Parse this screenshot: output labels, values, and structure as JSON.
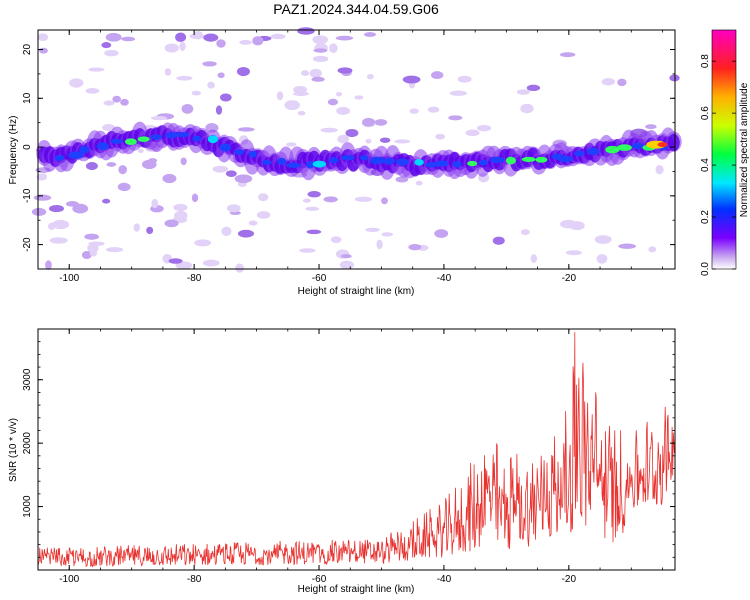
{
  "title": "PAZ1.2024.344.04.59.G06",
  "chart_data": [
    {
      "type": "heatmap",
      "xlabel": "Height of straight line (km)",
      "ylabel": "Frequency (Hz)",
      "xlim": [
        -105,
        -3
      ],
      "ylim": [
        -25,
        24
      ],
      "x_ticks": [
        -100,
        -80,
        -60,
        -40,
        -20
      ],
      "y_ticks": [
        -20,
        -10,
        0,
        10,
        20
      ],
      "x_tick_labels": [
        "-100",
        "-80",
        "-60",
        "-40",
        "-20"
      ],
      "y_tick_labels": [
        "-20",
        "-10",
        "0",
        "10",
        "20"
      ],
      "colorbar": {
        "label": "Normalized spectral amplitude",
        "range": [
          0,
          0.92
        ],
        "ticks": [
          0,
          0.2,
          0.4,
          0.6,
          0.8
        ],
        "tick_labels": [
          "0.0",
          "0.2",
          "0.4",
          "0.6",
          "0.8"
        ],
        "colormap": "rainbow (white, violet, blue, cyan, green, yellow, orange, red, magenta)"
      },
      "ridge_frequency_hz": [
        {
          "x": -103,
          "y": -2
        },
        {
          "x": -100,
          "y": -1.5
        },
        {
          "x": -95,
          "y": 0.5
        },
        {
          "x": -90,
          "y": 1.5
        },
        {
          "x": -85,
          "y": 2.5
        },
        {
          "x": -80,
          "y": 2
        },
        {
          "x": -75,
          "y": 0
        },
        {
          "x": -70,
          "y": -2.5
        },
        {
          "x": -65,
          "y": -3.5
        },
        {
          "x": -60,
          "y": -3
        },
        {
          "x": -55,
          "y": -2.5
        },
        {
          "x": -50,
          "y": -3
        },
        {
          "x": -45,
          "y": -3.5
        },
        {
          "x": -40,
          "y": -3.5
        },
        {
          "x": -35,
          "y": -3
        },
        {
          "x": -30,
          "y": -2.5
        },
        {
          "x": -25,
          "y": -2.5
        },
        {
          "x": -20,
          "y": -2
        },
        {
          "x": -15,
          "y": -1
        },
        {
          "x": -10,
          "y": 0
        },
        {
          "x": -5,
          "y": 0.5
        },
        {
          "x": -3,
          "y": 1
        }
      ],
      "peak": {
        "x": -5,
        "y": 0.5,
        "amplitude": 0.9
      }
    },
    {
      "type": "line",
      "xlabel": "Height of straight line (km)",
      "ylabel": "SNR (10 * v/v)",
      "xlim": [
        -105,
        -3
      ],
      "ylim": [
        0,
        3800
      ],
      "x_ticks": [
        -100,
        -80,
        -60,
        -40,
        -20
      ],
      "y_ticks": [
        1000,
        2000,
        3000
      ],
      "x_tick_labels": [
        "-100",
        "-80",
        "-60",
        "-40",
        "-20"
      ],
      "y_tick_labels": [
        "1000",
        "2000",
        "3000"
      ],
      "series": [
        {
          "color": "#e8322f",
          "envelope": [
            {
              "x": -105,
              "low": 50,
              "high": 350
            },
            {
              "x": -90,
              "low": 60,
              "high": 400
            },
            {
              "x": -70,
              "low": 80,
              "high": 450
            },
            {
              "x": -50,
              "low": 100,
              "high": 500
            },
            {
              "x": -45,
              "low": 150,
              "high": 800
            },
            {
              "x": -40,
              "low": 200,
              "high": 1100
            },
            {
              "x": -35,
              "low": 300,
              "high": 1800
            },
            {
              "x": -33,
              "low": 400,
              "high": 2200
            },
            {
              "x": -30,
              "low": 300,
              "high": 1900
            },
            {
              "x": -25,
              "low": 400,
              "high": 2000
            },
            {
              "x": -20,
              "low": 500,
              "high": 2600
            },
            {
              "x": -19,
              "low": 700,
              "high": 3750
            },
            {
              "x": -15,
              "low": 500,
              "high": 2800
            },
            {
              "x": -12,
              "low": 400,
              "high": 2300
            },
            {
              "x": -10,
              "low": 900,
              "high": 2200
            },
            {
              "x": -7,
              "low": 1000,
              "high": 2500
            },
            {
              "x": -5,
              "low": 1000,
              "high": 2700
            },
            {
              "x": -3,
              "low": 1600,
              "high": 2300
            }
          ],
          "peak": {
            "x": -19,
            "y": 3750
          }
        }
      ]
    }
  ]
}
